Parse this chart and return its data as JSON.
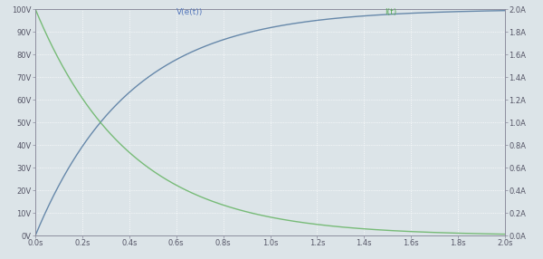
{
  "V_label": "V(e(t))",
  "I_label": "I(t)",
  "t_start": 0.0,
  "t_end": 2.0,
  "tau": 0.4,
  "V_max": 100.0,
  "I_max": 2.0,
  "x_ticks": [
    0.0,
    0.2,
    0.4,
    0.6,
    0.8,
    1.0,
    1.2,
    1.4,
    1.6,
    1.8,
    2.0
  ],
  "y_left_ticks": [
    0,
    10,
    20,
    30,
    40,
    50,
    60,
    70,
    80,
    90,
    100
  ],
  "y_right_ticks": [
    0.0,
    0.2,
    0.4,
    0.6,
    0.8,
    1.0,
    1.2,
    1.4,
    1.6,
    1.8,
    2.0
  ],
  "y_left_labels": [
    "0V",
    "10V",
    "20V",
    "30V",
    "40V",
    "50V",
    "60V",
    "70V",
    "80V",
    "90V",
    "100V"
  ],
  "y_right_labels": [
    "0.0A",
    "0.2A",
    "0.4A",
    "0.6A",
    "0.8A",
    "1.0A",
    "1.2A",
    "1.4A",
    "1.6A",
    "1.8A",
    "2.0A"
  ],
  "x_labels": [
    "0.0s",
    "0.2s",
    "0.4s",
    "0.6s",
    "0.8s",
    "1.0s",
    "1.2s",
    "1.4s",
    "1.6s",
    "1.8s",
    "2.0s"
  ],
  "bg_color": "#dce4e8",
  "grid_color": "#ffffff",
  "V_color": "#6688aa",
  "I_color": "#77bb77",
  "legend_V_color": "#5577bb",
  "legend_I_color": "#55aa55",
  "tick_color": "#888899",
  "label_color": "#555566",
  "font_size": 6,
  "legend_font_size": 6.5,
  "line_width": 1.0
}
